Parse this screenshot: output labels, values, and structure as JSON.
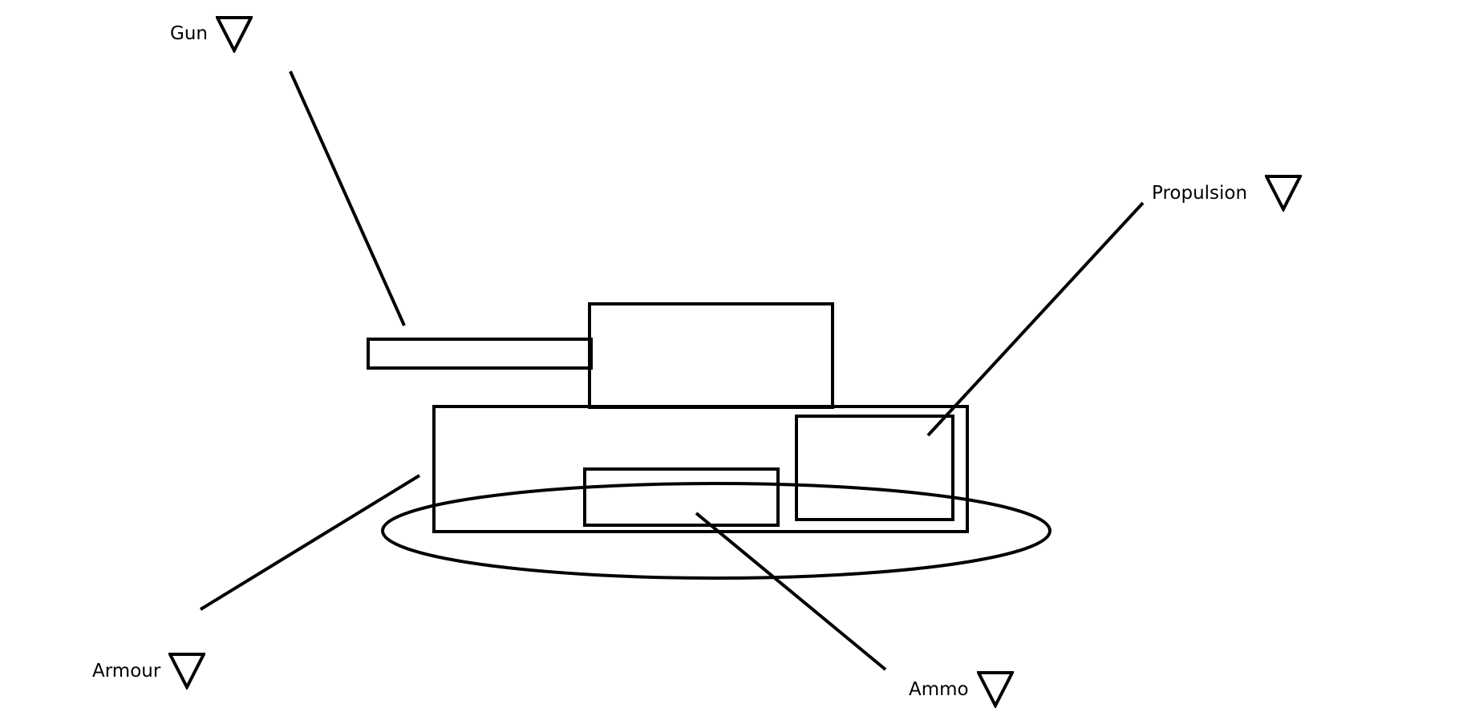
{
  "selectors": {
    "gun": {
      "label": "Gun",
      "icon": "triangle-down-icon"
    },
    "propulsion": {
      "label": "Propulsion",
      "icon": "triangle-down-icon"
    },
    "armour": {
      "label": "Armour",
      "icon": "triangle-down-icon"
    },
    "ammo": {
      "label": "Ammo",
      "icon": "triangle-down-icon"
    }
  },
  "colors": {
    "stroke": "#000000",
    "background": "#ffffff"
  }
}
